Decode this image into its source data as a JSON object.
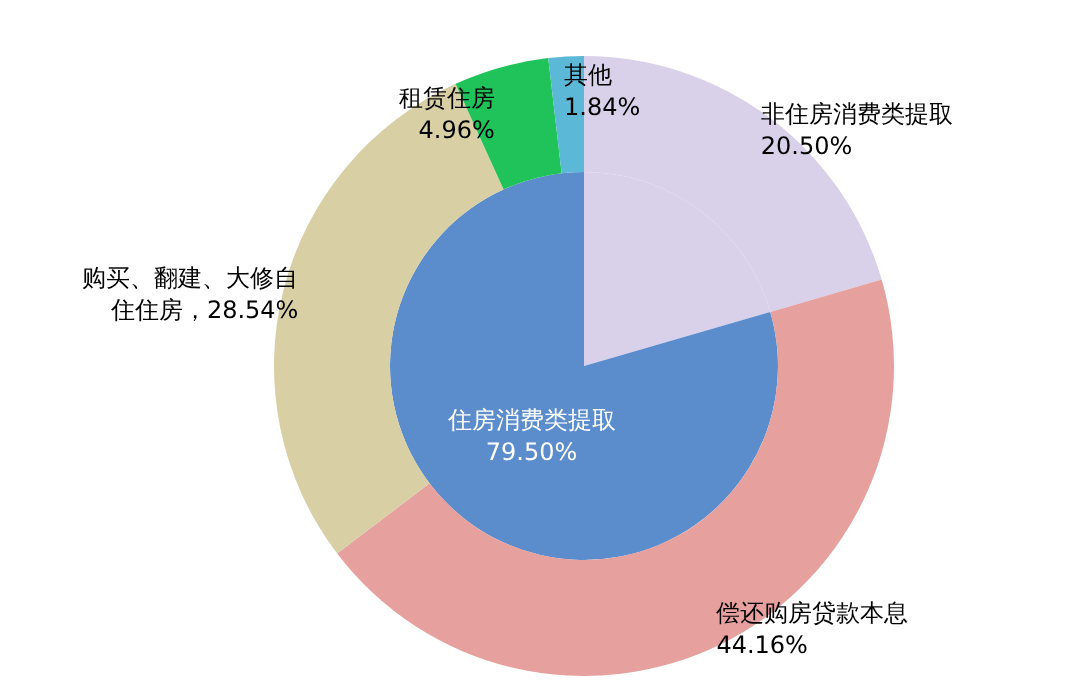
{
  "chart_data": [
    {
      "type": "pie",
      "categories": [
        null,
        "住房消费类提取"
      ],
      "values": [
        20.5,
        79.5
      ],
      "colors": [
        "#d9d0ea",
        "#5b8dcd"
      ],
      "value_labels": [
        null,
        "79.50%"
      ]
    },
    {
      "type": "donut",
      "categories": [
        "非住房消费类提取",
        "偿还购房贷款本息",
        "购买、翻建、大修自住住房",
        "租赁住房",
        "其他"
      ],
      "values": [
        20.5,
        44.16,
        28.54,
        4.96,
        1.84
      ],
      "colors": [
        "#d9d0ea",
        "#e6a19e",
        "#d8cfa5",
        "#1fc35a",
        "#5bb8d6"
      ],
      "value_labels": [
        "20.50%",
        "44.16%",
        "28.54%",
        "4.96%",
        "1.84%"
      ]
    }
  ]
}
